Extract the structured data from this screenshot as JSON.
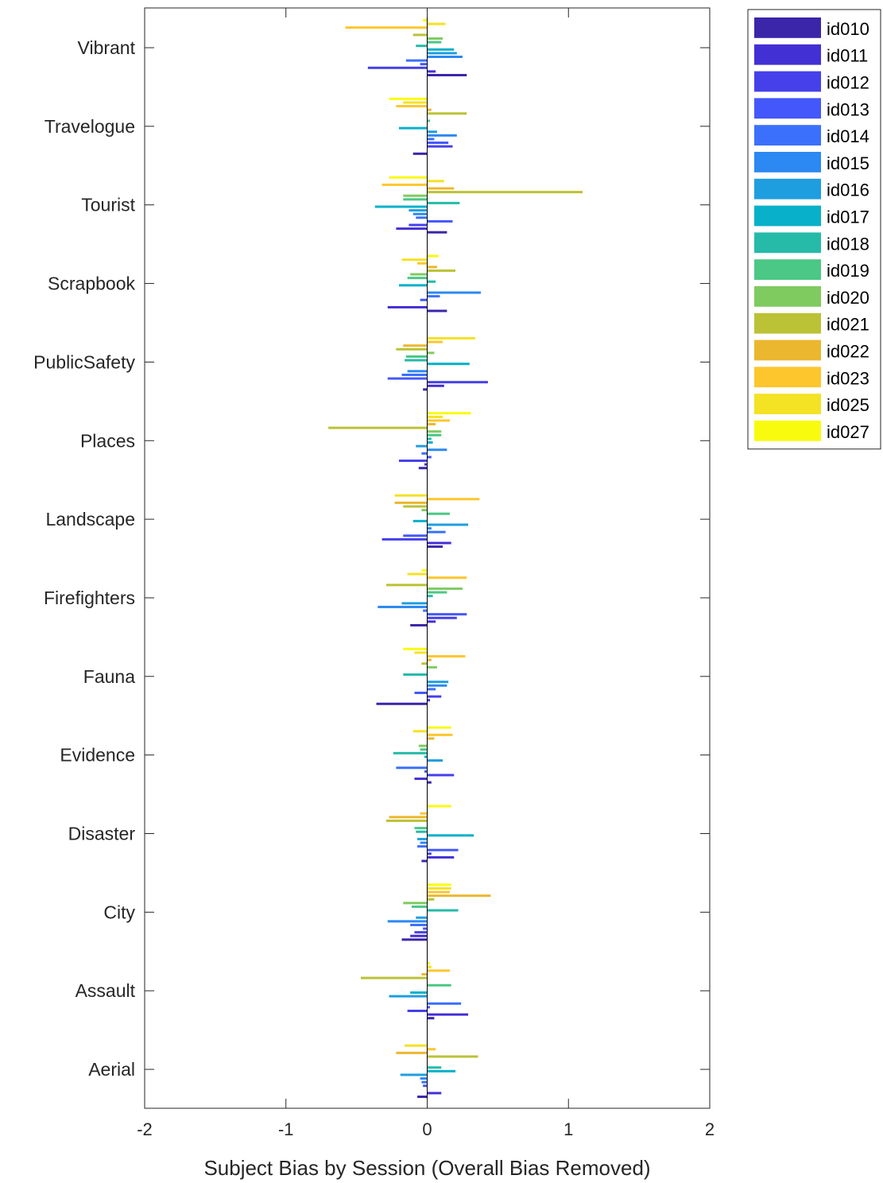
{
  "chart_data": {
    "type": "bar",
    "orientation": "horizontal",
    "xlabel": "Subject Bias by Session (Overall Bias Removed)",
    "ylabel": "",
    "title": "",
    "xlim": [
      -2,
      2
    ],
    "xticks": [
      -2,
      -1,
      0,
      1,
      2
    ],
    "xtick_labels": [
      "-2",
      "-1",
      "0",
      "1",
      "2"
    ],
    "grid": false,
    "legend_position": "outside-top-right",
    "categories": [
      "Vibrant",
      "Travelogue",
      "Tourist",
      "Scrapbook",
      "PublicSafety",
      "Places",
      "Landscape",
      "Firefighters",
      "Fauna",
      "Evidence",
      "Disaster",
      "City",
      "Assault",
      "Aerial"
    ],
    "series": [
      {
        "name": "id010",
        "color": "#3b26aa",
        "values": [
          0.28,
          -0.1,
          0.14,
          0.14,
          -0.03,
          -0.06,
          0.11,
          -0.12,
          -0.36,
          0.03,
          -0.04,
          -0.18,
          0.05,
          -0.07
        ]
      },
      {
        "name": "id011",
        "color": "#4330d4",
        "values": [
          0.06,
          0.0,
          -0.22,
          -0.28,
          0.12,
          -0.02,
          0.17,
          0.06,
          0.02,
          -0.09,
          0.19,
          -0.12,
          0.29,
          0.1
        ]
      },
      {
        "name": "id012",
        "color": "#4640eb",
        "values": [
          -0.42,
          0.18,
          -0.13,
          0.0,
          0.43,
          -0.2,
          -0.32,
          0.21,
          0.1,
          0.19,
          0.03,
          -0.09,
          -0.14,
          0.0
        ]
      },
      {
        "name": "id013",
        "color": "#4457fb",
        "values": [
          -0.05,
          0.15,
          0.18,
          -0.05,
          -0.28,
          0.03,
          -0.17,
          0.28,
          -0.09,
          -0.02,
          0.22,
          -0.03,
          0.02,
          -0.03
        ]
      },
      {
        "name": "id014",
        "color": "#3b70fd",
        "values": [
          -0.15,
          0.05,
          -0.08,
          0.09,
          -0.18,
          -0.04,
          0.13,
          -0.03,
          0.06,
          -0.22,
          -0.07,
          -0.12,
          0.24,
          -0.04
        ]
      },
      {
        "name": "id015",
        "color": "#2c88f2",
        "values": [
          0.25,
          0.21,
          -0.1,
          0.38,
          -0.14,
          0.14,
          0.03,
          -0.35,
          0.14,
          0.0,
          -0.05,
          -0.28,
          0.0,
          -0.05
        ]
      },
      {
        "name": "id016",
        "color": "#1f9edf",
        "values": [
          0.21,
          0.07,
          -0.13,
          0.0,
          0.0,
          -0.08,
          0.29,
          -0.18,
          0.15,
          0.11,
          -0.07,
          -0.08,
          -0.27,
          -0.19
        ]
      },
      {
        "name": "id017",
        "color": "#08b0c9",
        "values": [
          0.19,
          -0.2,
          -0.37,
          -0.2,
          0.3,
          0.04,
          -0.1,
          0.0,
          0.0,
          -0.02,
          0.33,
          0.0,
          -0.12,
          0.2
        ]
      },
      {
        "name": "id018",
        "color": "#25bba8",
        "values": [
          -0.08,
          0.0,
          0.23,
          0.06,
          -0.16,
          0.03,
          0.0,
          0.04,
          -0.17,
          -0.24,
          -0.08,
          0.22,
          0.0,
          0.1
        ]
      },
      {
        "name": "id019",
        "color": "#4bc885",
        "values": [
          0.1,
          0.02,
          -0.17,
          -0.14,
          -0.15,
          0.1,
          0.16,
          0.14,
          0.0,
          -0.05,
          -0.09,
          -0.11,
          0.17,
          0.0
        ]
      },
      {
        "name": "id020",
        "color": "#7fcb60",
        "values": [
          0.11,
          0.0,
          -0.17,
          -0.12,
          0.05,
          0.1,
          -0.04,
          0.25,
          0.07,
          -0.06,
          0.0,
          -0.17,
          0.0,
          0.0
        ]
      },
      {
        "name": "id021",
        "color": "#bbc235",
        "values": [
          -0.1,
          0.28,
          1.1,
          0.2,
          -0.22,
          -0.7,
          -0.17,
          -0.29,
          -0.04,
          0.0,
          -0.29,
          0.05,
          -0.47,
          0.36
        ]
      },
      {
        "name": "id022",
        "color": "#ebb72f",
        "values": [
          0.0,
          0.03,
          0.19,
          0.07,
          -0.17,
          0.06,
          -0.23,
          0.0,
          0.03,
          0.05,
          -0.27,
          0.45,
          -0.04,
          -0.22
        ]
      },
      {
        "name": "id023",
        "color": "#fdc62d",
        "values": [
          -0.58,
          -0.22,
          -0.32,
          -0.07,
          0.11,
          0.16,
          0.37,
          0.28,
          0.27,
          0.18,
          -0.05,
          0.16,
          0.16,
          0.06
        ]
      },
      {
        "name": "id025",
        "color": "#f4e224",
        "values": [
          0.13,
          -0.17,
          0.12,
          -0.18,
          0.34,
          0.11,
          -0.23,
          -0.14,
          -0.09,
          -0.1,
          0.0,
          0.17,
          0.03,
          -0.16
        ]
      },
      {
        "name": "id027",
        "color": "#f9fb0e",
        "values": [
          -0.03,
          -0.27,
          -0.27,
          0.08,
          0.0,
          0.31,
          0.0,
          -0.04,
          -0.17,
          0.17,
          0.17,
          0.17,
          0.02,
          0.0
        ]
      }
    ]
  }
}
